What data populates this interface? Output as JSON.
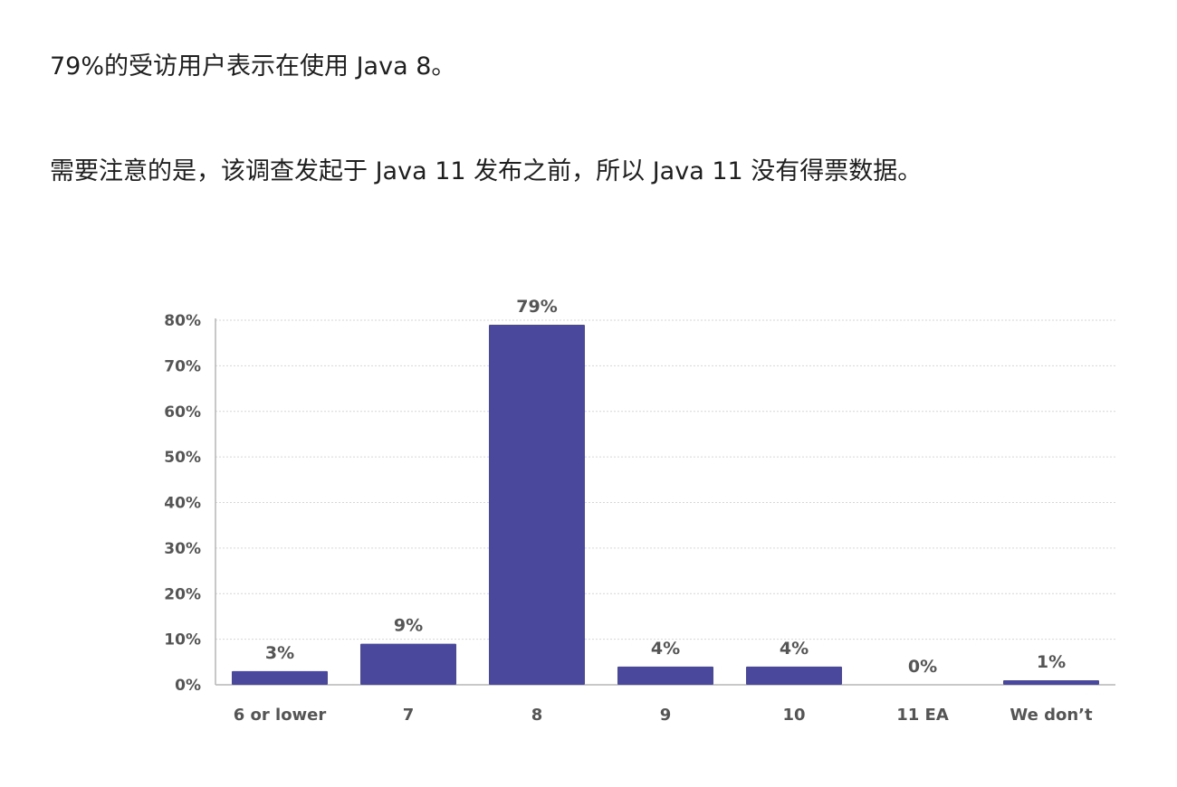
{
  "article": {
    "paragraph_1": "79%的受访用户表示在使用 Java 8。",
    "paragraph_2": "需要注意的是，该调查发起于 Java 11 发布之前，所以 Java 11 没有得票数据。"
  },
  "chart_data": {
    "type": "bar",
    "title": "",
    "xlabel": "",
    "ylabel": "",
    "categories": [
      "6 or lower",
      "7",
      "8",
      "9",
      "10",
      "11 EA",
      "We don’t"
    ],
    "values": [
      3,
      9,
      79,
      4,
      4,
      0,
      1
    ],
    "data_labels": [
      "3%",
      "9%",
      "79%",
      "4%",
      "4%",
      "0%",
      "1%"
    ],
    "ylim": [
      0,
      80
    ],
    "y_ticks": [
      0,
      10,
      20,
      30,
      40,
      50,
      60,
      70,
      80
    ],
    "y_tick_labels": [
      "0%",
      "10%",
      "20%",
      "30%",
      "40%",
      "50%",
      "60%",
      "70%",
      "80%"
    ],
    "grid": true,
    "legend": "none",
    "colors": {
      "bar": "#4a489d",
      "grid": "#d6d6d6",
      "axis": "#b5b5b5",
      "text": "#555555"
    }
  }
}
